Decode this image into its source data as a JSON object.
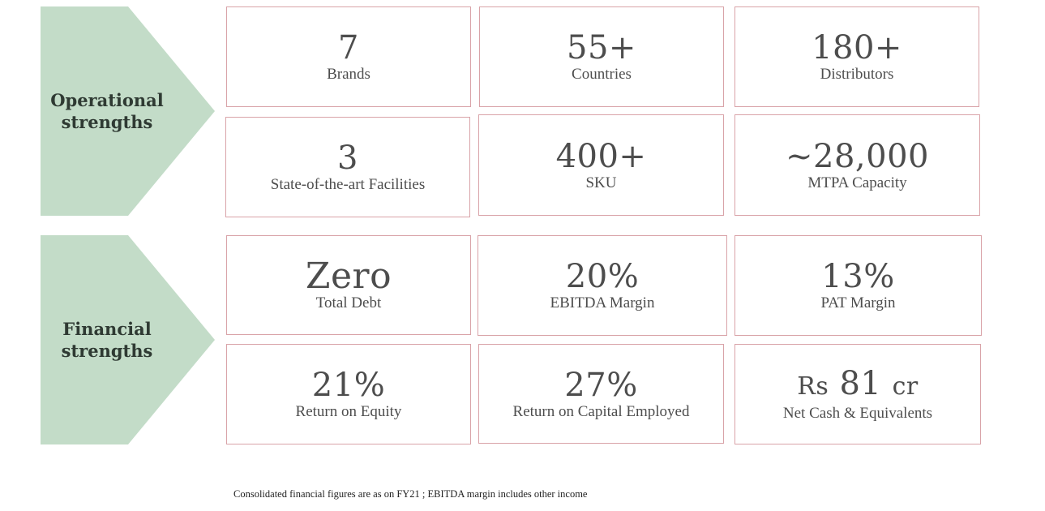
{
  "sections": {
    "operational": {
      "title_line1": "Operational",
      "title_line2": "strengths",
      "color": "#c3dcc8"
    },
    "financial": {
      "title_line1": "Financial",
      "title_line2": "strengths",
      "color": "#c3dcc8"
    }
  },
  "tiles": {
    "brands": {
      "value": "7",
      "label": "Brands"
    },
    "countries": {
      "value": "55+",
      "label": "Countries"
    },
    "distributors": {
      "value": "180+",
      "label": "Distributors"
    },
    "facilities": {
      "value": "3",
      "label": "State-of-the-art Facilities"
    },
    "sku": {
      "value": "400+",
      "label": "SKU"
    },
    "capacity": {
      "value": "~28,000",
      "label": "MTPA Capacity"
    },
    "debt": {
      "value": "Zero",
      "label": "Total Debt"
    },
    "ebitda": {
      "value": "20%",
      "label": "EBITDA Margin"
    },
    "pat": {
      "value": "13%",
      "label": "PAT Margin"
    },
    "roe": {
      "value": "21%",
      "label": "Return on Equity"
    },
    "roce": {
      "value": "27%",
      "label": "Return on Capital Employed"
    },
    "cash": {
      "prefix": "Rs",
      "value": "81",
      "suffix": "cr",
      "label": "Net Cash & Equivalents"
    }
  },
  "footnote": "Consolidated financial figures are as on FY21 ; EBITDA margin includes other income",
  "colors": {
    "tile_border": "#d9a3a8",
    "chevron_fill": "#c3dcc8",
    "text": "#4d4d4d"
  }
}
